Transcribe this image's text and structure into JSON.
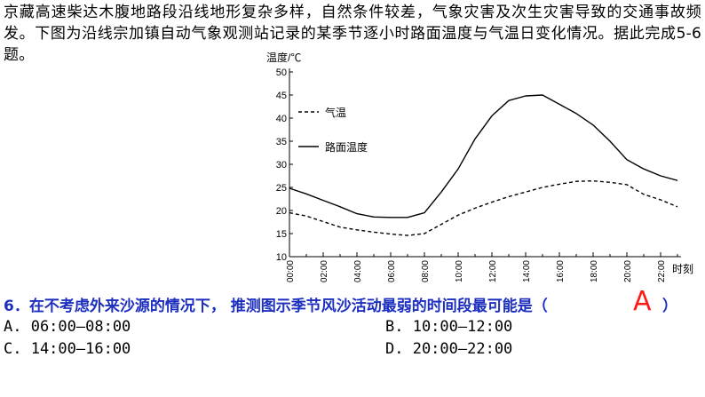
{
  "intro_text": "京藏高速柴达木腹地路段沿线地形复杂多样，自然条件较差，气象灾害及次生灾害导致的交通事故频发。下图为沿线宗加镇自动气象观测站记录的某季节逐小时路面温度与气温日变化情况。据此完成5-6题。",
  "chart_data": {
    "type": "line",
    "ylabel": "温度/℃",
    "xlabel": "时刻",
    "ylim": [
      10,
      50
    ],
    "yticks": [
      "50",
      "45",
      "40",
      "35",
      "30",
      "25",
      "20",
      "15",
      "10"
    ],
    "xticks": [
      "00:00",
      "02:00",
      "04:00",
      "06:00",
      "08:00",
      "10:00",
      "12:00",
      "14:00",
      "16:00",
      "18:00",
      "20:00",
      "22:00"
    ],
    "x": [
      0,
      1,
      2,
      3,
      4,
      5,
      6,
      7,
      8,
      9,
      10,
      11,
      12,
      13,
      14,
      15,
      16,
      17,
      18,
      19,
      20,
      21,
      22,
      23
    ],
    "series": [
      {
        "name": "气温",
        "style": "dashed",
        "values": [
          19.5,
          18.8,
          17.6,
          16.4,
          15.8,
          15.3,
          14.9,
          14.6,
          15.0,
          17.0,
          19.0,
          20.5,
          21.8,
          23.0,
          24.0,
          25.0,
          25.7,
          26.3,
          26.4,
          26.1,
          25.6,
          23.5,
          22.3,
          20.8
        ]
      },
      {
        "name": "路面温度",
        "style": "solid",
        "values": [
          24.8,
          23.6,
          22.2,
          20.8,
          19.3,
          18.6,
          18.5,
          18.5,
          19.5,
          24.0,
          29.0,
          35.5,
          40.5,
          43.8,
          44.8,
          45.0,
          43.0,
          41.0,
          38.5,
          35.0,
          31.0,
          29.0,
          27.5,
          26.5
        ]
      }
    ]
  },
  "question": {
    "text": "6．在不考虑外来沙源的情况下， 推测图示季节风沙活动最弱的时间段最可能是（",
    "answer": "A",
    "close": "）"
  },
  "options": [
    {
      "label": "A. 06:00—08:00"
    },
    {
      "label": "B. 10:00—12:00"
    },
    {
      "label": "C. 14:00—16:00"
    },
    {
      "label": "D. 20:00—22:00"
    }
  ]
}
